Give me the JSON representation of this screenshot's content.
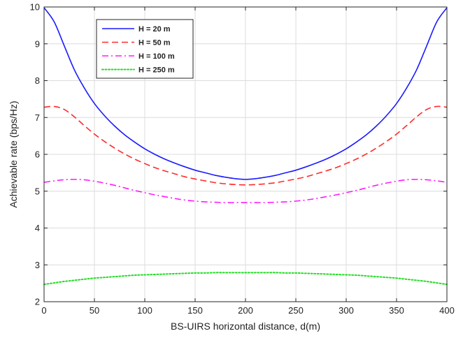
{
  "chart_data": {
    "type": "line",
    "title": "",
    "xlabel": "BS-UIRS horizontal distance, d(m)",
    "ylabel": "Achievable rate (bps/Hz)",
    "xlim": [
      0,
      400
    ],
    "ylim": [
      2,
      10
    ],
    "xticks": [
      0,
      50,
      100,
      150,
      200,
      250,
      300,
      350,
      400
    ],
    "yticks": [
      2,
      3,
      4,
      5,
      6,
      7,
      8,
      9,
      10
    ],
    "grid": true,
    "legend_position": "top-left",
    "series": [
      {
        "name": "H = 20 m",
        "color": "#1a1aff",
        "style": "solid",
        "x": [
          0,
          10,
          20,
          30,
          40,
          50,
          60,
          70,
          80,
          90,
          100,
          110,
          120,
          130,
          140,
          150,
          160,
          170,
          180,
          190,
          200,
          210,
          220,
          230,
          240,
          250,
          260,
          270,
          280,
          290,
          300,
          310,
          320,
          330,
          340,
          350,
          360,
          370,
          380,
          390,
          400
        ],
        "values": [
          9.98,
          9.6,
          8.95,
          8.3,
          7.8,
          7.38,
          7.05,
          6.77,
          6.53,
          6.33,
          6.15,
          6.0,
          5.87,
          5.76,
          5.66,
          5.57,
          5.5,
          5.43,
          5.38,
          5.34,
          5.32,
          5.34,
          5.38,
          5.43,
          5.5,
          5.57,
          5.66,
          5.76,
          5.87,
          6.0,
          6.15,
          6.33,
          6.53,
          6.77,
          7.05,
          7.38,
          7.8,
          8.3,
          8.95,
          9.6,
          9.98
        ]
      },
      {
        "name": "H = 50 m",
        "color": "#ff2a2a",
        "style": "dashed",
        "x": [
          0,
          10,
          20,
          30,
          40,
          50,
          60,
          70,
          80,
          90,
          100,
          110,
          120,
          130,
          140,
          150,
          160,
          170,
          180,
          190,
          200,
          210,
          220,
          230,
          240,
          250,
          260,
          270,
          280,
          290,
          300,
          310,
          320,
          330,
          340,
          350,
          360,
          370,
          380,
          390,
          400
        ],
        "values": [
          7.28,
          7.3,
          7.22,
          7.02,
          6.78,
          6.55,
          6.35,
          6.17,
          6.01,
          5.87,
          5.75,
          5.64,
          5.55,
          5.47,
          5.39,
          5.33,
          5.28,
          5.23,
          5.2,
          5.18,
          5.17,
          5.18,
          5.2,
          5.23,
          5.28,
          5.33,
          5.39,
          5.47,
          5.55,
          5.64,
          5.75,
          5.87,
          6.01,
          6.17,
          6.35,
          6.55,
          6.78,
          7.02,
          7.22,
          7.3,
          7.28
        ]
      },
      {
        "name": "H = 100 m",
        "color": "#ff1aff",
        "style": "dashdot",
        "x": [
          0,
          10,
          20,
          30,
          40,
          50,
          60,
          70,
          80,
          90,
          100,
          110,
          120,
          130,
          140,
          150,
          160,
          170,
          180,
          190,
          200,
          210,
          220,
          230,
          240,
          250,
          260,
          270,
          280,
          290,
          300,
          310,
          320,
          330,
          340,
          350,
          360,
          370,
          380,
          390,
          400
        ],
        "values": [
          5.24,
          5.28,
          5.31,
          5.32,
          5.31,
          5.27,
          5.22,
          5.16,
          5.09,
          5.02,
          4.96,
          4.9,
          4.85,
          4.8,
          4.76,
          4.73,
          4.71,
          4.7,
          4.69,
          4.69,
          4.69,
          4.69,
          4.69,
          4.7,
          4.71,
          4.73,
          4.76,
          4.8,
          4.85,
          4.9,
          4.96,
          5.02,
          5.09,
          5.16,
          5.22,
          5.27,
          5.31,
          5.32,
          5.31,
          5.28,
          5.24
        ]
      },
      {
        "name": "H = 250 m",
        "color": "#22dd22",
        "style": "dotted",
        "x": [
          0,
          10,
          20,
          30,
          40,
          50,
          60,
          70,
          80,
          90,
          100,
          110,
          120,
          130,
          140,
          150,
          160,
          170,
          180,
          190,
          200,
          210,
          220,
          230,
          240,
          250,
          260,
          270,
          280,
          290,
          300,
          310,
          320,
          330,
          340,
          350,
          360,
          370,
          380,
          390,
          400
        ],
        "values": [
          2.47,
          2.51,
          2.55,
          2.58,
          2.61,
          2.64,
          2.66,
          2.68,
          2.7,
          2.72,
          2.73,
          2.74,
          2.75,
          2.76,
          2.77,
          2.78,
          2.78,
          2.79,
          2.79,
          2.79,
          2.79,
          2.79,
          2.79,
          2.79,
          2.78,
          2.78,
          2.77,
          2.76,
          2.75,
          2.74,
          2.73,
          2.72,
          2.7,
          2.68,
          2.66,
          2.64,
          2.61,
          2.58,
          2.55,
          2.51,
          2.47
        ]
      }
    ]
  }
}
